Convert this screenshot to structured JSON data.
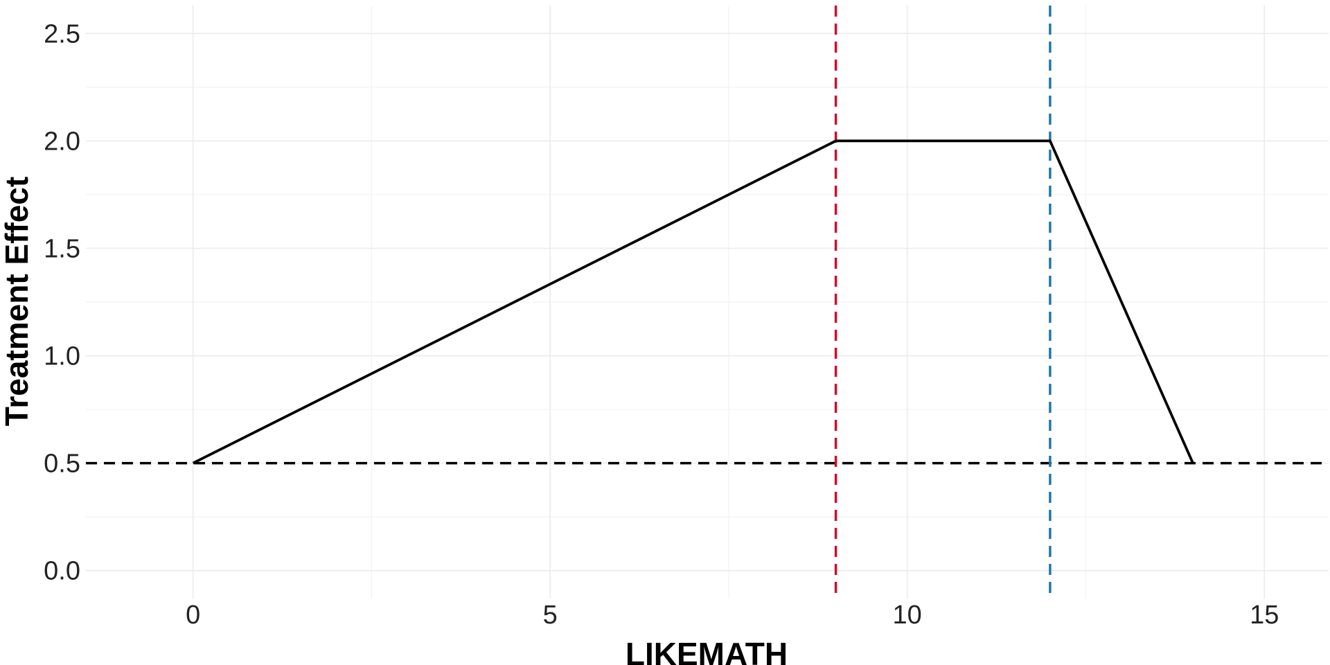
{
  "chart_data": {
    "type": "line",
    "title": "",
    "xlabel": "LIKEMATH",
    "ylabel": "Treatment Effect",
    "xlim": [
      -1.5,
      15.9
    ],
    "ylim": [
      -0.13,
      2.63
    ],
    "x_ticks": [
      0,
      5,
      10,
      15
    ],
    "x_tick_labels": [
      "0",
      "5",
      "10",
      "15"
    ],
    "y_ticks": [
      0.0,
      0.5,
      1.0,
      1.5,
      2.0,
      2.5
    ],
    "y_tick_labels": [
      "0.0",
      "0.5",
      "1.0",
      "1.5",
      "2.0",
      "2.5"
    ],
    "grid": true,
    "legend": "none",
    "series": [
      {
        "color": "#000000",
        "x": [
          0,
          9,
          12,
          14
        ],
        "y": [
          0.5,
          2.0,
          2.0,
          0.5
        ]
      }
    ],
    "reference_lines": [
      {
        "orientation": "horizontal",
        "value": 0.5,
        "style": "dashed",
        "color": "#000000"
      },
      {
        "orientation": "vertical",
        "value": 9,
        "style": "dashed",
        "color": "#c8102e"
      },
      {
        "orientation": "vertical",
        "value": 12,
        "style": "dashed",
        "color": "#1f78a8"
      }
    ]
  }
}
